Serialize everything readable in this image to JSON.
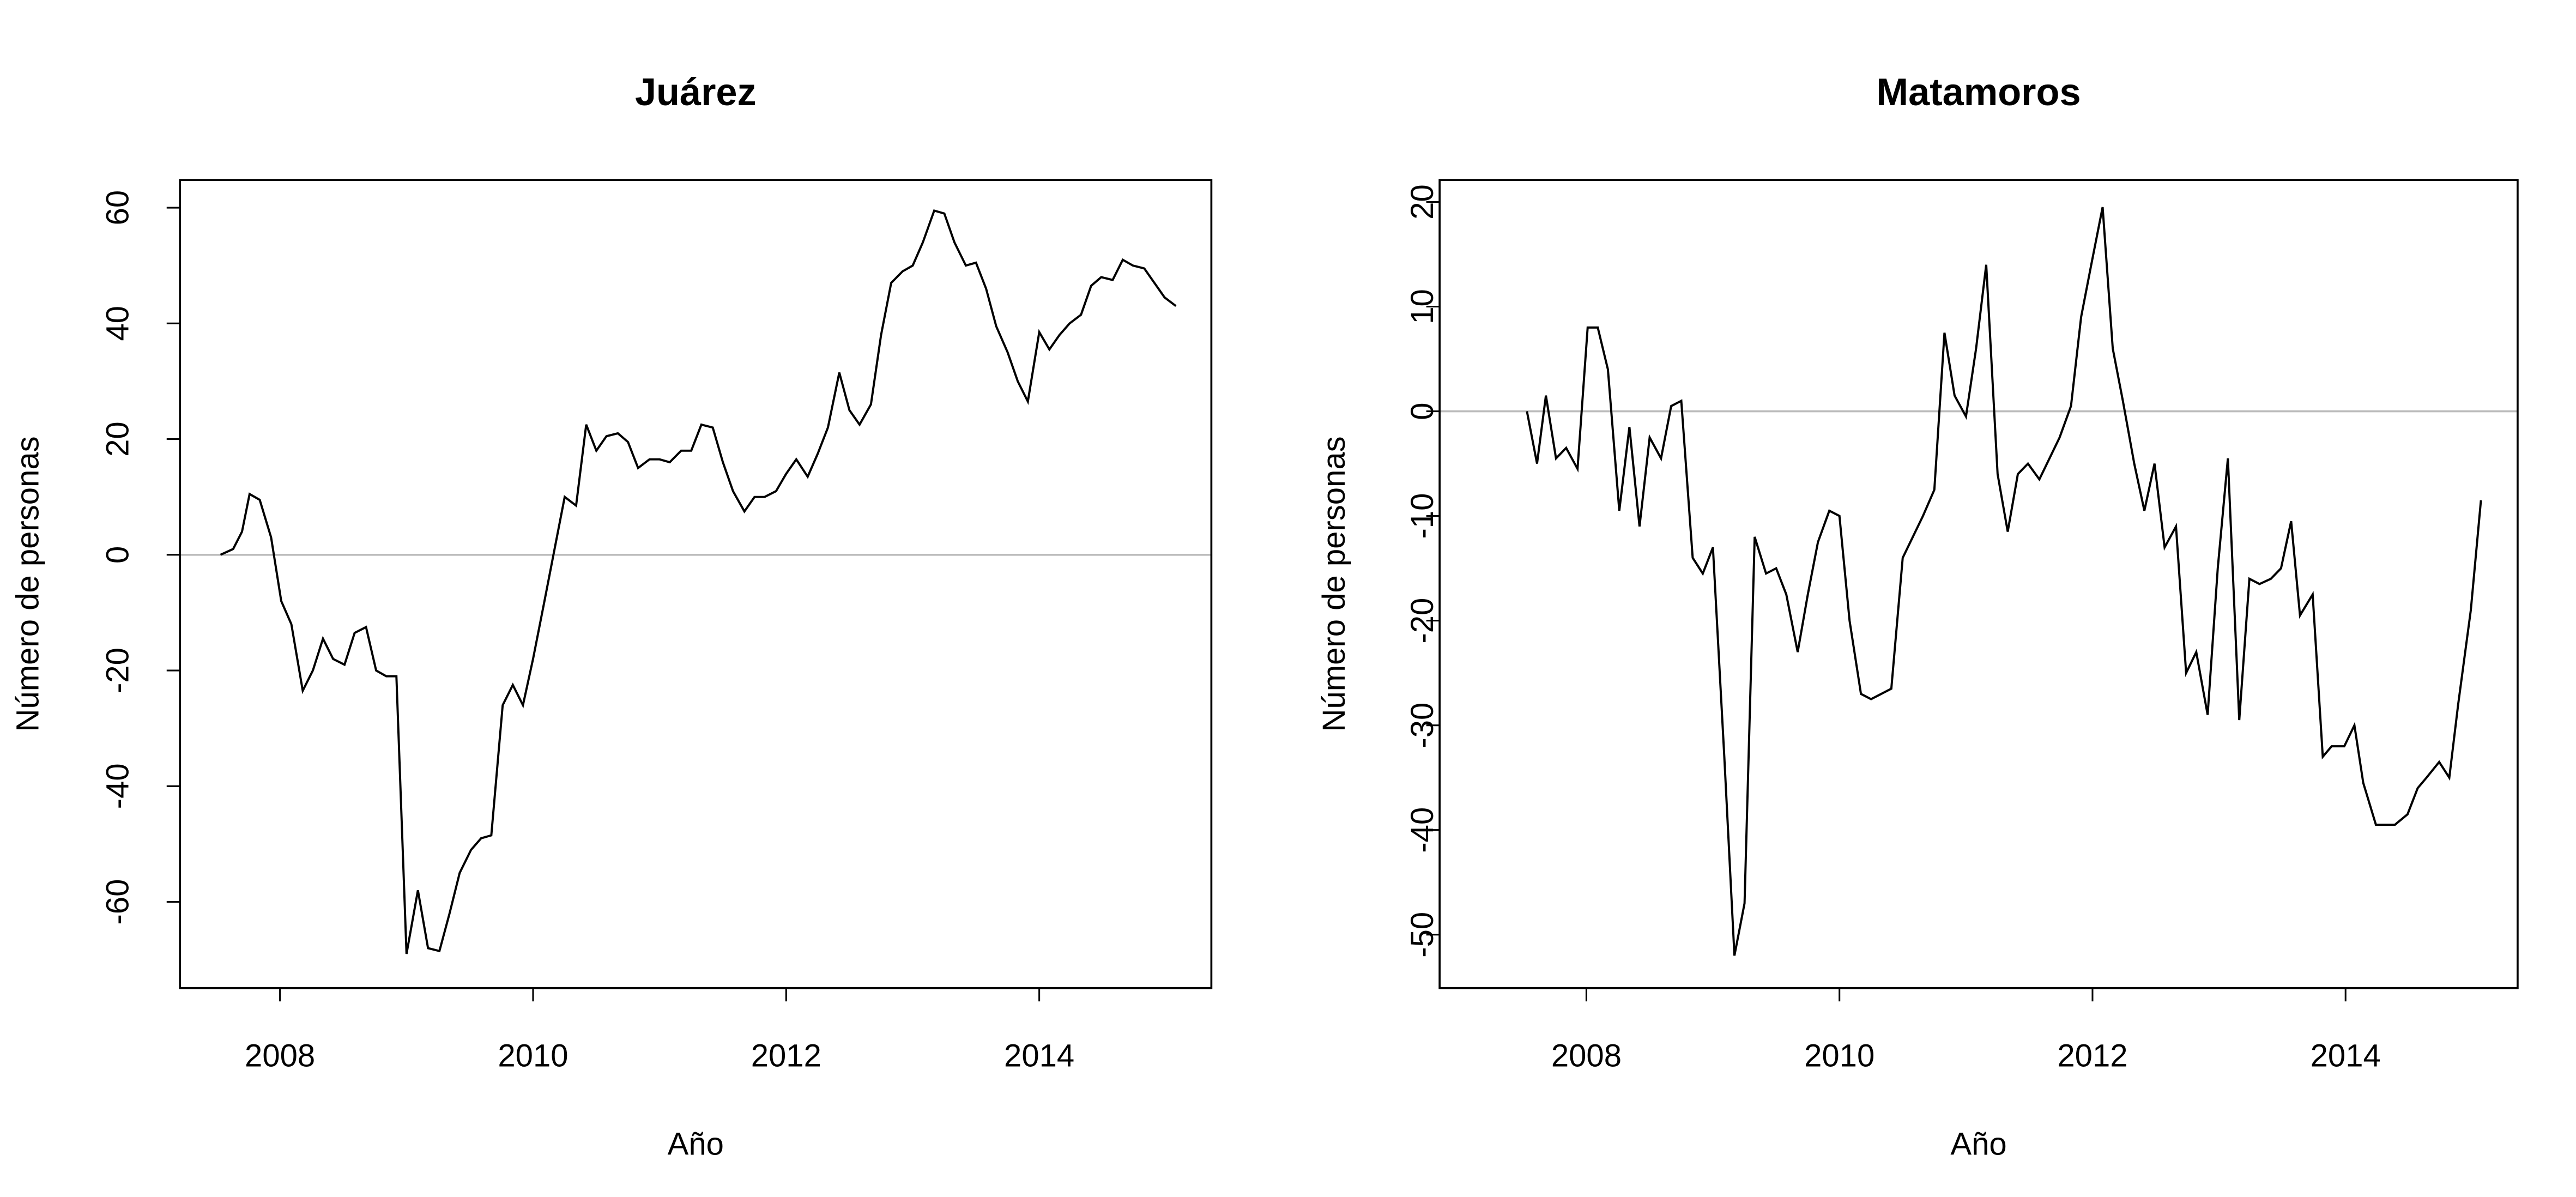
{
  "chart_data": [
    {
      "type": "line",
      "title": "Juárez",
      "xlabel": "Año",
      "ylabel": "Número de personas",
      "color": "#000000",
      "reference_line": {
        "value": 0,
        "color": "#bbbbbb"
      },
      "xlim": [
        2007.21,
        2015.36
      ],
      "xticks": [
        2008,
        2010,
        2012,
        2014
      ],
      "ylim": [
        -74.9,
        64.8
      ],
      "yticks": [
        -60,
        -40,
        -20,
        0,
        20,
        40,
        60
      ],
      "x": [
        2007.53,
        2007.63,
        2007.7,
        2007.76,
        2007.84,
        2007.93,
        2008.01,
        2008.09,
        2008.18,
        2008.26,
        2008.34,
        2008.42,
        2008.51,
        2008.59,
        2008.68,
        2008.76,
        2008.84,
        2008.92,
        2009.0,
        2009.09,
        2009.17,
        2009.26,
        2009.34,
        2009.42,
        2009.51,
        2009.59,
        2009.67,
        2009.76,
        2009.84,
        2009.92,
        2010.0,
        2010.09,
        2010.17,
        2010.25,
        2010.34,
        2010.42,
        2010.5,
        2010.58,
        2010.67,
        2010.75,
        2010.83,
        2010.92,
        2011.0,
        2011.08,
        2011.17,
        2011.25,
        2011.33,
        2011.42,
        2011.5,
        2011.58,
        2011.67,
        2011.75,
        2011.83,
        2011.92,
        2012.0,
        2012.08,
        2012.17,
        2012.25,
        2012.33,
        2012.42,
        2012.5,
        2012.58,
        2012.67,
        2012.75,
        2012.83,
        2012.92,
        2013.0,
        2013.08,
        2013.17,
        2013.25,
        2013.33,
        2013.42,
        2013.5,
        2013.58,
        2013.66,
        2013.75,
        2013.83,
        2013.91,
        2014.0,
        2014.08,
        2014.16,
        2014.24,
        2014.33,
        2014.41,
        2014.49,
        2014.58,
        2014.66,
        2014.74,
        2014.83,
        2014.91,
        2014.99,
        2015.08
      ],
      "values": [
        0,
        1,
        4,
        10.5,
        9.5,
        3,
        -8,
        -12,
        -23.5,
        -20,
        -14.5,
        -18,
        -19,
        -13.5,
        -12.5,
        -20,
        -21,
        -21,
        -69,
        -58,
        -68,
        -68.5,
        -62,
        -55,
        -51,
        -49,
        -48.5,
        -26,
        -22.5,
        -26,
        -18,
        -8,
        1,
        10,
        8.5,
        22.5,
        18,
        20.5,
        21,
        19.5,
        15,
        16.5,
        16.5,
        16,
        18,
        18,
        22.5,
        22,
        16,
        11,
        7.5,
        10,
        10,
        11,
        14,
        16.5,
        13.5,
        17.5,
        22,
        31.5,
        25,
        22.5,
        26,
        38,
        47,
        49,
        50,
        54,
        59.5,
        59,
        54,
        50,
        50.5,
        46,
        39.5,
        35,
        30,
        26.5,
        38.5,
        35.5,
        38,
        40,
        41.5,
        46.5,
        48,
        47.5,
        51,
        50,
        49.5,
        47,
        44.5,
        43
      ]
    },
    {
      "type": "line",
      "title": "Matamoros",
      "xlabel": "Año",
      "ylabel": "Número de personas",
      "color": "#000000",
      "reference_line": {
        "value": 0,
        "color": "#bbbbbb"
      },
      "xlim": [
        2006.84,
        2015.36
      ],
      "xticks": [
        2008,
        2010,
        2012,
        2014
      ],
      "ylim": [
        -55.1,
        22.1
      ],
      "yticks": [
        -50,
        -40,
        -30,
        -20,
        -10,
        0,
        10,
        20
      ],
      "x": [
        2007.53,
        2007.61,
        2007.68,
        2007.76,
        2007.84,
        2007.93,
        2008.01,
        2008.09,
        2008.17,
        2008.26,
        2008.34,
        2008.42,
        2008.5,
        2008.59,
        2008.67,
        2008.75,
        2008.84,
        2008.92,
        2009.0,
        2009.09,
        2009.17,
        2009.25,
        2009.33,
        2009.42,
        2009.5,
        2009.58,
        2009.67,
        2009.75,
        2009.83,
        2009.92,
        2010.0,
        2010.08,
        2010.17,
        2010.25,
        2010.33,
        2010.41,
        2010.5,
        2010.58,
        2010.66,
        2010.75,
        2010.83,
        2010.91,
        2011.0,
        2011.08,
        2011.16,
        2011.25,
        2011.33,
        2011.41,
        2011.49,
        2011.58,
        2011.66,
        2011.74,
        2011.83,
        2011.91,
        2011.99,
        2012.08,
        2012.16,
        2012.24,
        2012.33,
        2012.41,
        2012.49,
        2012.57,
        2012.66,
        2012.74,
        2012.82,
        2012.91,
        2012.99,
        2013.07,
        2013.16,
        2013.24,
        2013.32,
        2013.41,
        2013.49,
        2013.57,
        2013.64,
        2013.74,
        2013.82,
        2013.89,
        2013.99,
        2014.07,
        2014.14,
        2014.24,
        2014.32,
        2014.39,
        2014.49,
        2014.57,
        2014.64,
        2014.74,
        2014.82,
        2014.89,
        2014.99,
        2015.07
      ],
      "values": [
        0,
        -5,
        1.5,
        -4.5,
        -3.5,
        -5.5,
        8,
        8,
        4,
        -9.5,
        -1.5,
        -11,
        -2.5,
        -4.5,
        0.5,
        1,
        -14,
        -15.5,
        -13,
        -33,
        -52,
        -47,
        -12,
        -15.5,
        -15,
        -17.5,
        -23,
        -17.5,
        -12.5,
        -9.5,
        -10,
        -20,
        -27,
        -27.5,
        -27,
        -26.5,
        -14,
        -12,
        -10,
        -7.5,
        7.5,
        1.5,
        -0.5,
        6,
        14,
        -6,
        -11.5,
        -6,
        -5,
        -6.5,
        -4.5,
        -2.5,
        0.5,
        9,
        14,
        19.5,
        6,
        1,
        -5,
        -9.5,
        -5,
        -13,
        -11,
        -25,
        -23,
        -29,
        -15,
        -4.5,
        -29.5,
        -16,
        -16.5,
        -16,
        -15,
        -10.5,
        -19.5,
        -17.5,
        -33,
        -32,
        -32,
        -30,
        -35.5,
        -39.5,
        -39.5,
        -39.5,
        -38.5,
        -36,
        -35,
        -33.5,
        -35,
        -28,
        -19,
        -8.5
      ]
    }
  ]
}
